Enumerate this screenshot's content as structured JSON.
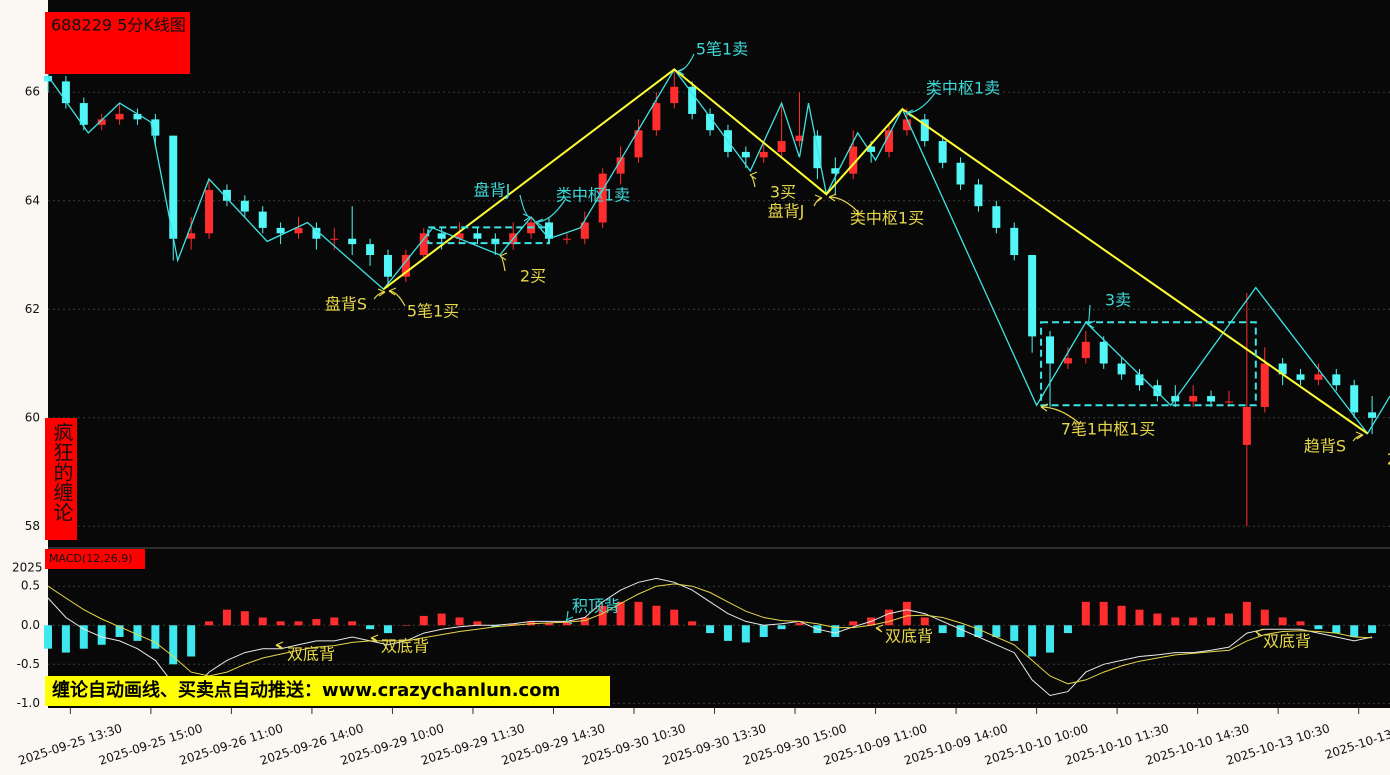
{
  "chart_data": [
    {
      "type": "candlestick",
      "title": "688229 5分K线图",
      "badge": "疯狂的缠论",
      "up_color": "#ff2d2d",
      "down_color": "#52f6f6",
      "xlim": [
        0,
        300
      ],
      "ylim": [
        57.6,
        67.7
      ],
      "yticks": [
        58,
        60,
        62,
        64,
        66
      ],
      "grid": true,
      "x": [
        0,
        4,
        8,
        12,
        16,
        20,
        24,
        28,
        32,
        36,
        40,
        44,
        48,
        52,
        56,
        60,
        64,
        68,
        72,
        76,
        80,
        84,
        88,
        92,
        96,
        100,
        104,
        108,
        112,
        116,
        120,
        124,
        128,
        132,
        136,
        140,
        144,
        148,
        152,
        156,
        160,
        164,
        168,
        172,
        176,
        180,
        184,
        188,
        192,
        196,
        200,
        204,
        208,
        212,
        216,
        220,
        224,
        228,
        232,
        236,
        240,
        244,
        248,
        252,
        256,
        260,
        264,
        268,
        272,
        276,
        280,
        284,
        288,
        292,
        296
      ],
      "open": [
        66.3,
        66.2,
        65.8,
        65.4,
        65.5,
        65.6,
        65.5,
        65.2,
        63.3,
        63.4,
        64.2,
        64.0,
        63.8,
        63.5,
        63.4,
        63.5,
        63.3,
        63.3,
        63.2,
        63.0,
        62.6,
        63.0,
        63.4,
        63.3,
        63.4,
        63.3,
        63.2,
        63.4,
        63.6,
        63.3,
        63.3,
        63.6,
        64.5,
        64.8,
        65.3,
        65.8,
        66.1,
        65.6,
        65.3,
        64.9,
        64.8,
        64.9,
        65.1,
        65.2,
        64.6,
        64.5,
        65.0,
        64.9,
        65.3,
        65.5,
        65.1,
        64.7,
        64.3,
        63.9,
        63.5,
        63.0,
        61.5,
        61.0,
        61.1,
        61.4,
        61.0,
        60.8,
        60.6,
        60.4,
        60.3,
        60.4,
        60.3,
        59.5,
        60.2,
        61.0,
        60.8,
        60.7,
        60.8,
        60.6,
        60.1
      ],
      "high": [
        66.4,
        66.3,
        65.9,
        65.6,
        65.8,
        65.7,
        65.6,
        65.2,
        63.7,
        64.4,
        64.3,
        64.1,
        63.9,
        63.6,
        63.7,
        63.6,
        63.5,
        63.9,
        63.3,
        63.1,
        63.1,
        63.5,
        63.5,
        63.6,
        63.5,
        63.4,
        63.6,
        63.7,
        63.7,
        63.4,
        63.8,
        64.6,
        65.0,
        65.5,
        66.0,
        66.4,
        66.2,
        65.7,
        65.4,
        65.0,
        65.1,
        65.8,
        66.0,
        65.3,
        64.8,
        65.3,
        65.1,
        65.4,
        65.7,
        65.6,
        65.2,
        64.8,
        64.4,
        64.0,
        63.6,
        63.0,
        61.6,
        61.3,
        61.6,
        61.5,
        61.1,
        60.9,
        60.7,
        60.6,
        60.6,
        60.5,
        60.5,
        62.3,
        61.3,
        61.1,
        60.9,
        61.0,
        60.9,
        60.7,
        60.4
      ],
      "low": [
        66.0,
        65.7,
        65.3,
        65.3,
        65.4,
        65.4,
        65.0,
        62.9,
        63.1,
        63.3,
        63.9,
        63.7,
        63.4,
        63.2,
        63.3,
        63.1,
        63.1,
        63.0,
        62.8,
        62.4,
        62.5,
        62.9,
        63.1,
        63.2,
        63.2,
        63.0,
        63.1,
        63.3,
        63.2,
        63.2,
        63.2,
        63.5,
        64.3,
        64.7,
        65.2,
        65.7,
        65.5,
        65.2,
        64.8,
        64.6,
        64.7,
        64.8,
        65.0,
        64.4,
        64.1,
        64.4,
        64.7,
        64.8,
        65.2,
        65.0,
        64.6,
        64.2,
        63.8,
        63.4,
        62.9,
        61.2,
        60.2,
        60.9,
        61.0,
        60.9,
        60.7,
        60.5,
        60.3,
        60.2,
        60.2,
        60.2,
        60.2,
        58.0,
        60.1,
        60.6,
        60.6,
        60.6,
        60.5,
        60.0,
        59.7
      ],
      "close": [
        66.2,
        65.8,
        65.4,
        65.5,
        65.6,
        65.5,
        65.2,
        63.3,
        63.4,
        64.2,
        64.0,
        63.8,
        63.5,
        63.4,
        63.5,
        63.3,
        63.3,
        63.2,
        63.0,
        62.6,
        63.0,
        63.4,
        63.3,
        63.4,
        63.3,
        63.2,
        63.4,
        63.6,
        63.3,
        63.3,
        63.6,
        64.5,
        64.8,
        65.3,
        65.8,
        66.1,
        65.6,
        65.3,
        64.9,
        64.8,
        64.9,
        65.1,
        65.2,
        64.6,
        64.5,
        65.0,
        64.9,
        65.3,
        65.5,
        65.1,
        64.7,
        64.3,
        63.9,
        63.5,
        63.0,
        61.5,
        61.0,
        61.1,
        61.4,
        61.0,
        60.8,
        60.6,
        60.4,
        60.3,
        60.4,
        60.3,
        60.3,
        60.2,
        61.0,
        60.8,
        60.7,
        60.8,
        60.6,
        60.1,
        60.0
      ],
      "strokes": {
        "color": "#3fe3e3",
        "x": [
          0,
          9,
          16,
          23,
          29,
          36,
          49,
          58,
          75,
          86,
          101,
          108,
          112,
          119,
          140,
          157,
          164,
          168,
          170,
          174,
          181,
          185,
          191,
          221,
          232,
          251,
          270,
          295,
          300
        ],
        "y": [
          66.3,
          65.25,
          65.8,
          65.45,
          62.9,
          64.4,
          63.25,
          63.6,
          62.37,
          63.5,
          63.0,
          63.7,
          63.3,
          63.5,
          66.42,
          64.55,
          65.8,
          64.8,
          65.8,
          64.12,
          65.25,
          64.75,
          65.69,
          60.23,
          61.76,
          60.23,
          62.4,
          59.71,
          60.4
        ]
      },
      "segments": {
        "color": "#ffff33",
        "x": [
          75,
          140,
          174,
          191,
          295
        ],
        "y": [
          62.37,
          66.42,
          64.12,
          65.69,
          59.71
        ]
      },
      "pivots": {
        "color": "#3fe3e3",
        "boxes": [
          {
            "x": [
              85,
              112
            ],
            "y": [
              63.22,
              63.51
            ]
          },
          {
            "x": [
              222,
              270
            ],
            "y": [
              60.23,
              61.76
            ]
          }
        ]
      },
      "annotations": [
        {
          "text": "5笔1卖",
          "color": "#3fd8d8"
        },
        {
          "text": "类中枢1卖",
          "color": "#3fd8d8"
        },
        {
          "text": "盘背J",
          "color": "#3fd8d8"
        },
        {
          "text": "类中枢1卖",
          "color": "#3fd8d8"
        },
        {
          "text": "3买",
          "color": "#e6d64a"
        },
        {
          "text": "盘背J",
          "color": "#e6d64a"
        },
        {
          "text": "类中枢1买",
          "color": "#e6d64a"
        },
        {
          "text": "2买",
          "color": "#e6d64a"
        },
        {
          "text": "盘背S",
          "color": "#e6d64a"
        },
        {
          "text": "5笔1买",
          "color": "#e6d64a"
        },
        {
          "text": "3卖",
          "color": "#3fd8d8"
        },
        {
          "text": "7笔1中枢1买",
          "color": "#e6d64a"
        },
        {
          "text": "趋背S",
          "color": "#e6d64a"
        },
        {
          "text": "2",
          "color": "#e6d64a"
        }
      ]
    },
    {
      "type": "macd",
      "title": "MACD(12,26,9)",
      "corner_label": "2025",
      "banner": "缠论自动画线、买卖点自动推送：www.crazychanlun.com",
      "xlim": [
        0,
        300
      ],
      "ylim": [
        -1.06,
        0.99
      ],
      "yticks": [
        {
          "value": -1.0,
          "label": "-1.0"
        },
        {
          "value": -0.5,
          "label": "-0.5"
        },
        {
          "value": 0,
          "label": "0.0"
        },
        0.5
      ],
      "grid": true,
      "xticks": [
        {
          "value": 5,
          "label": "2025-09-25 13:30"
        },
        {
          "value": 23,
          "label": "2025-09-25 15:00"
        },
        {
          "value": 41,
          "label": "2025-09-26 11:00"
        },
        {
          "value": 59,
          "label": "2025-09-26 14:00"
        },
        {
          "value": 77,
          "label": "2025-09-29 10:00"
        },
        {
          "value": 95,
          "label": "2025-09-29 11:30"
        },
        {
          "value": 113,
          "label": "2025-09-29 14:30"
        },
        {
          "value": 131,
          "label": "2025-09-30 10:30"
        },
        {
          "value": 149,
          "label": "2025-09-30 13:30"
        },
        {
          "value": 167,
          "label": "2025-09-30 15:00"
        },
        {
          "value": 185,
          "label": "2025-10-09 11:00"
        },
        {
          "value": 203,
          "label": "2025-10-09 14:00"
        },
        {
          "value": 221,
          "label": "2025-10-10 10:00"
        },
        {
          "value": 239,
          "label": "2025-10-10 11:30"
        },
        {
          "value": 257,
          "label": "2025-10-10 14:30"
        },
        {
          "value": 275,
          "label": "2025-10-13 10:30"
        },
        {
          "value": 293,
          "label": "2025-10-13"
        }
      ],
      "x": [
        0,
        4,
        8,
        12,
        16,
        20,
        24,
        28,
        32,
        36,
        40,
        44,
        48,
        52,
        56,
        60,
        64,
        68,
        72,
        76,
        80,
        84,
        88,
        92,
        96,
        100,
        104,
        108,
        112,
        116,
        120,
        124,
        128,
        132,
        136,
        140,
        144,
        148,
        152,
        156,
        160,
        164,
        168,
        172,
        176,
        180,
        184,
        188,
        192,
        196,
        200,
        204,
        208,
        212,
        216,
        220,
        224,
        228,
        232,
        236,
        240,
        244,
        248,
        252,
        256,
        260,
        264,
        268,
        272,
        276,
        280,
        284,
        288,
        292,
        296
      ],
      "histogram": [
        -0.3,
        -0.35,
        -0.3,
        -0.25,
        -0.15,
        -0.2,
        -0.3,
        -0.5,
        -0.4,
        0.05,
        0.2,
        0.18,
        0.1,
        0.05,
        0.05,
        0.08,
        0.1,
        0.05,
        -0.05,
        -0.1,
        0.0,
        0.12,
        0.15,
        0.1,
        0.05,
        -0.02,
        0.02,
        0.05,
        0.03,
        0.05,
        0.1,
        0.25,
        0.3,
        0.3,
        0.25,
        0.2,
        0.05,
        -0.1,
        -0.2,
        -0.22,
        -0.15,
        -0.05,
        0.03,
        -0.1,
        -0.15,
        0.05,
        0.1,
        0.2,
        0.3,
        0.1,
        -0.1,
        -0.15,
        -0.15,
        -0.15,
        -0.2,
        -0.4,
        -0.35,
        -0.1,
        0.3,
        0.3,
        0.25,
        0.2,
        0.15,
        0.1,
        0.1,
        0.1,
        0.15,
        0.3,
        0.2,
        0.1,
        0.05,
        -0.05,
        -0.1,
        -0.15,
        -0.1
      ],
      "dif": [
        0.35,
        0.1,
        -0.05,
        -0.15,
        -0.2,
        -0.3,
        -0.45,
        -0.75,
        -0.85,
        -0.6,
        -0.45,
        -0.35,
        -0.3,
        -0.3,
        -0.25,
        -0.2,
        -0.2,
        -0.15,
        -0.2,
        -0.25,
        -0.2,
        -0.1,
        -0.05,
        -0.02,
        0.0,
        0.0,
        0.02,
        0.05,
        0.05,
        0.05,
        0.1,
        0.3,
        0.45,
        0.55,
        0.6,
        0.55,
        0.45,
        0.3,
        0.15,
        0.05,
        0.0,
        0.02,
        0.05,
        -0.05,
        -0.1,
        -0.02,
        0.05,
        0.15,
        0.2,
        0.15,
        0.05,
        -0.05,
        -0.15,
        -0.25,
        -0.35,
        -0.7,
        -0.9,
        -0.85,
        -0.6,
        -0.5,
        -0.45,
        -0.4,
        -0.38,
        -0.35,
        -0.35,
        -0.32,
        -0.28,
        -0.1,
        -0.05,
        -0.05,
        -0.05,
        -0.1,
        -0.15,
        -0.2,
        -0.15
      ],
      "dea": [
        0.5,
        0.35,
        0.2,
        0.08,
        -0.02,
        -0.12,
        -0.22,
        -0.4,
        -0.6,
        -0.65,
        -0.6,
        -0.5,
        -0.42,
        -0.37,
        -0.32,
        -0.28,
        -0.26,
        -0.22,
        -0.2,
        -0.2,
        -0.2,
        -0.16,
        -0.12,
        -0.08,
        -0.05,
        -0.02,
        0.0,
        0.02,
        0.03,
        0.04,
        0.06,
        0.15,
        0.28,
        0.4,
        0.5,
        0.53,
        0.5,
        0.42,
        0.3,
        0.18,
        0.1,
        0.06,
        0.05,
        0.02,
        -0.03,
        -0.03,
        0.0,
        0.05,
        0.12,
        0.13,
        0.1,
        0.03,
        -0.05,
        -0.15,
        -0.25,
        -0.45,
        -0.65,
        -0.75,
        -0.7,
        -0.6,
        -0.52,
        -0.46,
        -0.42,
        -0.38,
        -0.36,
        -0.34,
        -0.32,
        -0.2,
        -0.12,
        -0.08,
        -0.07,
        -0.08,
        -0.1,
        -0.15,
        -0.16
      ],
      "up_color": "#ff2d2d",
      "down_color": "#3ee8ee",
      "dif_color": "#e8e8e8",
      "dea_color": "#e6d64a",
      "annotations": [
        {
          "text": "积顶背",
          "color": "#3fd8d8"
        },
        {
          "text": "双底背",
          "color": "#e6d64a"
        },
        {
          "text": "双底背",
          "color": "#e6d64a"
        },
        {
          "text": "双底背",
          "color": "#e6d64a"
        },
        {
          "text": "双底背",
          "color": "#e6d64a"
        }
      ]
    }
  ]
}
